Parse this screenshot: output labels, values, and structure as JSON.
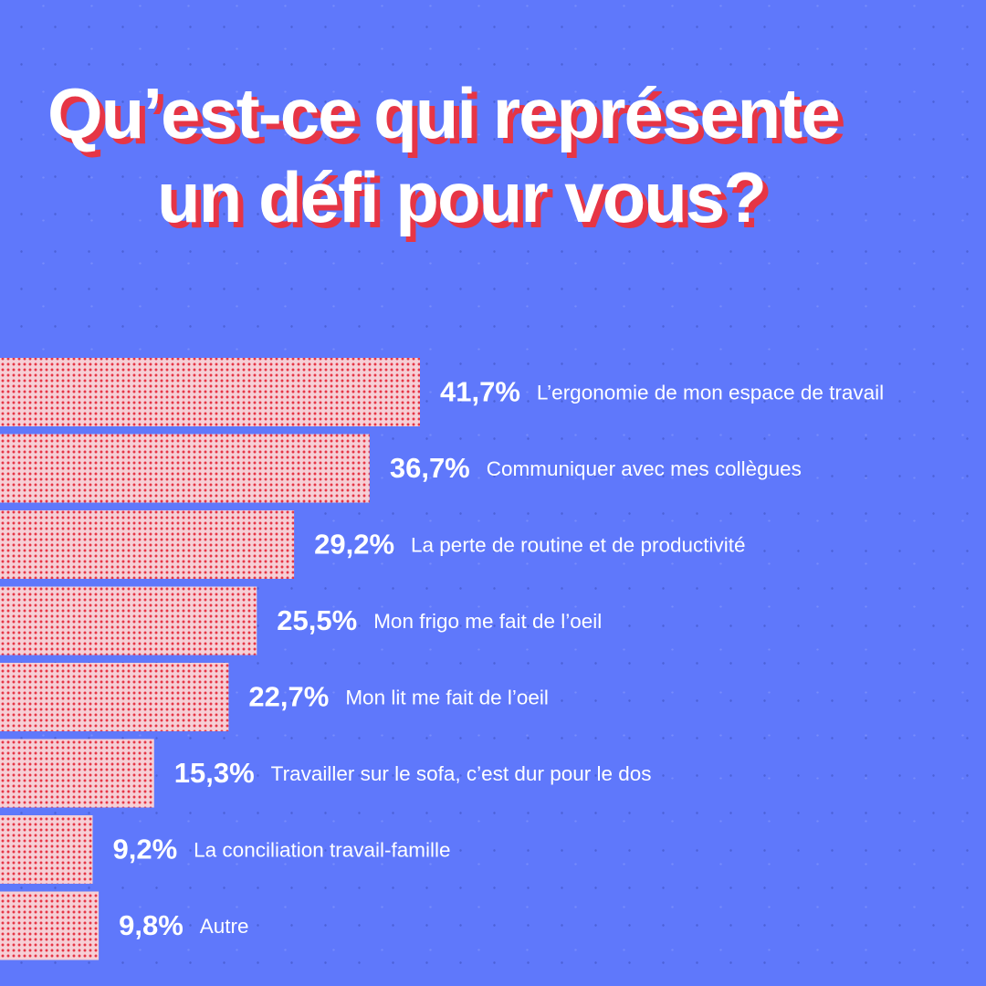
{
  "title": {
    "line1": "Qu’est-ce qui représente",
    "line2": "un défi pour vous?"
  },
  "colors": {
    "background": "#5f78fb",
    "bar_fill": "#f6cfd6",
    "bar_dots": "#e63545",
    "title_text": "#ffffff",
    "title_shadow": "#e63545"
  },
  "chart_data": {
    "type": "bar",
    "orientation": "horizontal",
    "title": "Qu’est-ce qui représente un défi pour vous?",
    "xlabel": "",
    "ylabel": "",
    "xlim": [
      0,
      41.7
    ],
    "grid": false,
    "categories": [
      "L’ergonomie de mon espace de travail",
      "Communiquer avec mes collègues",
      "La perte de routine et de productivité",
      "Mon frigo me fait de l’oeil",
      "Mon lit me fait de l’oeil",
      "Travailler sur le sofa, c’est dur pour le dos",
      "La conciliation travail-famille",
      "Autre"
    ],
    "values": [
      41.7,
      36.7,
      29.2,
      25.5,
      22.7,
      15.3,
      9.2,
      9.8
    ],
    "value_labels": [
      "41,7%",
      "36,7%",
      "29,2%",
      "25,5%",
      "22,7%",
      "15,3%",
      "9,2%",
      "9,8%"
    ]
  }
}
